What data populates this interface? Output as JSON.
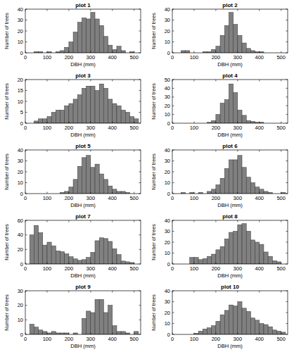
{
  "chart_data": [
    {
      "type": "histogram",
      "title": "plot 1",
      "x_label": "DBH (mm)",
      "y_label": "Number of trees",
      "color": "#808080",
      "bins": [
        0,
        20,
        40,
        60,
        80,
        100,
        120,
        140,
        160,
        180,
        200,
        220,
        240,
        260,
        280,
        300,
        320,
        340,
        360,
        380,
        400,
        420,
        440,
        460,
        480,
        500,
        520
      ],
      "values": [
        0,
        0,
        1,
        1,
        0,
        1,
        0,
        1,
        2,
        5,
        10,
        19,
        28,
        32,
        31,
        37,
        31,
        25,
        15,
        7,
        3,
        6,
        2,
        0,
        1,
        0
      ],
      "xlim": [
        0,
        530
      ],
      "xticks": [
        0,
        100,
        200,
        300,
        400,
        500
      ],
      "ylim": [
        0,
        40
      ],
      "yticks": [
        0,
        10,
        20,
        30,
        40
      ]
    },
    {
      "type": "histogram",
      "title": "plot 2",
      "x_label": "DBH (mm)",
      "y_label": "Number of trees",
      "color": "#808080",
      "bins": [
        0,
        20,
        40,
        60,
        80,
        100,
        120,
        140,
        160,
        180,
        200,
        220,
        240,
        260,
        280,
        300,
        320,
        340,
        360,
        380,
        400,
        420,
        440,
        460,
        480,
        500,
        520
      ],
      "values": [
        0,
        0,
        2,
        2,
        0,
        0,
        0,
        1,
        1,
        3,
        6,
        16,
        25,
        37,
        26,
        16,
        9,
        4,
        2,
        1,
        1,
        0,
        0,
        0,
        0,
        0
      ],
      "xlim": [
        0,
        530
      ],
      "xticks": [
        0,
        100,
        200,
        300,
        400,
        500
      ],
      "ylim": [
        0,
        40
      ],
      "yticks": [
        0,
        10,
        20,
        30,
        40
      ]
    },
    {
      "type": "histogram",
      "title": "plot 3",
      "x_label": "DBH (mm)",
      "y_label": "Number of trees",
      "color": "#808080",
      "bins": [
        0,
        20,
        40,
        60,
        80,
        100,
        120,
        140,
        160,
        180,
        200,
        220,
        240,
        260,
        280,
        300,
        320,
        340,
        360,
        380,
        400,
        420,
        440,
        460,
        480,
        500,
        520
      ],
      "values": [
        0,
        0,
        1,
        2,
        2,
        3,
        5,
        6,
        6,
        8,
        9,
        11,
        13,
        16,
        17,
        17,
        15,
        18,
        16,
        11,
        9,
        8,
        6,
        5,
        3,
        2
      ],
      "xlim": [
        0,
        530
      ],
      "xticks": [
        0,
        100,
        200,
        300,
        400,
        500
      ],
      "ylim": [
        0,
        20
      ],
      "yticks": [
        0,
        5,
        10,
        15,
        20
      ]
    },
    {
      "type": "histogram",
      "title": "plot 4",
      "x_label": "DBH (mm)",
      "y_label": "Number of trees",
      "color": "#808080",
      "bins": [
        0,
        20,
        40,
        60,
        80,
        100,
        120,
        140,
        160,
        180,
        200,
        220,
        240,
        260,
        280,
        300,
        320,
        340,
        360,
        380,
        400,
        420,
        440,
        460,
        480,
        500,
        520
      ],
      "values": [
        0,
        0,
        0,
        0,
        0,
        0,
        0,
        0,
        1,
        3,
        10,
        23,
        27,
        45,
        35,
        15,
        9,
        3,
        2,
        1,
        1,
        0,
        0,
        0,
        0,
        0
      ],
      "xlim": [
        0,
        530
      ],
      "xticks": [
        0,
        100,
        200,
        300,
        400,
        500
      ],
      "ylim": [
        0,
        50
      ],
      "yticks": [
        0,
        10,
        20,
        30,
        40,
        50
      ]
    },
    {
      "type": "histogram",
      "title": "plot 5",
      "x_label": "DBH (mm)",
      "y_label": "Number of trees",
      "color": "#808080",
      "bins": [
        0,
        20,
        40,
        60,
        80,
        100,
        120,
        140,
        160,
        180,
        200,
        220,
        240,
        260,
        280,
        300,
        320,
        340,
        360,
        380,
        400,
        420,
        440,
        460,
        480,
        500,
        520
      ],
      "values": [
        0,
        0,
        0,
        0,
        0,
        0,
        0,
        0,
        1,
        2,
        6,
        13,
        25,
        33,
        35,
        24,
        27,
        18,
        13,
        7,
        4,
        2,
        2,
        1,
        0,
        0
      ],
      "xlim": [
        0,
        530
      ],
      "xticks": [
        0,
        100,
        200,
        300,
        400,
        500
      ],
      "ylim": [
        0,
        40
      ],
      "yticks": [
        0,
        10,
        20,
        30,
        40
      ]
    },
    {
      "type": "histogram",
      "title": "plot 6",
      "x_label": "DBH (mm)",
      "y_label": "Number of trees",
      "color": "#808080",
      "bins": [
        0,
        20,
        40,
        60,
        80,
        100,
        120,
        140,
        160,
        180,
        200,
        220,
        240,
        260,
        280,
        300,
        320,
        340,
        360,
        380,
        400,
        420,
        440,
        460,
        480,
        500,
        520
      ],
      "values": [
        0,
        0,
        1,
        0,
        1,
        0,
        1,
        0,
        2,
        4,
        8,
        14,
        23,
        31,
        31,
        35,
        24,
        15,
        10,
        6,
        4,
        2,
        1,
        0,
        0,
        1
      ],
      "xlim": [
        0,
        530
      ],
      "xticks": [
        0,
        100,
        200,
        300,
        400,
        500
      ],
      "ylim": [
        0,
        40
      ],
      "yticks": [
        0,
        10,
        20,
        30,
        40
      ]
    },
    {
      "type": "histogram",
      "title": "plot 7",
      "x_label": "DBH (mm)",
      "y_label": "Number of trees",
      "color": "#808080",
      "bins": [
        0,
        20,
        40,
        60,
        80,
        100,
        120,
        140,
        160,
        180,
        200,
        220,
        240,
        260,
        280,
        300,
        320,
        340,
        360,
        380,
        400,
        420,
        440,
        460,
        480,
        500,
        520
      ],
      "values": [
        0,
        40,
        53,
        43,
        26,
        30,
        25,
        18,
        17,
        14,
        10,
        7,
        5,
        6,
        9,
        16,
        32,
        36,
        35,
        31,
        21,
        13,
        4,
        3,
        2,
        0
      ],
      "xlim": [
        0,
        530
      ],
      "xticks": [
        0,
        100,
        200,
        300,
        400,
        500
      ],
      "ylim": [
        0,
        60
      ],
      "yticks": [
        0,
        20,
        40,
        60
      ]
    },
    {
      "type": "histogram",
      "title": "plot 8",
      "x_label": "DBH (mm)",
      "y_label": "Number of trees",
      "color": "#808080",
      "bins": [
        0,
        20,
        40,
        60,
        80,
        100,
        120,
        140,
        160,
        180,
        200,
        220,
        240,
        260,
        280,
        300,
        320,
        340,
        360,
        380,
        400,
        420,
        440,
        460,
        480,
        500,
        520
      ],
      "values": [
        0,
        0,
        0,
        0,
        6,
        6,
        4,
        5,
        7,
        9,
        13,
        16,
        23,
        29,
        30,
        36,
        37,
        30,
        22,
        20,
        18,
        11,
        7,
        3,
        2,
        0
      ],
      "xlim": [
        0,
        530
      ],
      "xticks": [
        0,
        100,
        200,
        300,
        400,
        500
      ],
      "ylim": [
        0,
        40
      ],
      "yticks": [
        0,
        10,
        20,
        30,
        40
      ]
    },
    {
      "type": "histogram",
      "title": "plot 9",
      "x_label": "DBH (mm)",
      "y_label": "Number of trees",
      "color": "#808080",
      "bins": [
        0,
        20,
        40,
        60,
        80,
        100,
        120,
        140,
        160,
        180,
        200,
        220,
        240,
        260,
        280,
        300,
        320,
        340,
        360,
        380,
        400,
        420,
        440,
        460,
        480,
        500,
        520
      ],
      "values": [
        0,
        7,
        5,
        3,
        2,
        1,
        2,
        1,
        1,
        1,
        0,
        1,
        0,
        11,
        16,
        15,
        24,
        24,
        15,
        20,
        6,
        2,
        2,
        1,
        0,
        2
      ],
      "xlim": [
        0,
        530
      ],
      "xticks": [
        0,
        100,
        200,
        300,
        400,
        500
      ],
      "ylim": [
        0,
        30
      ],
      "yticks": [
        0,
        10,
        20,
        30
      ]
    },
    {
      "type": "histogram",
      "title": "plot 10",
      "x_label": "DBH (mm)",
      "y_label": "Number of trees",
      "color": "#808080",
      "bins": [
        0,
        20,
        40,
        60,
        80,
        100,
        120,
        140,
        160,
        180,
        200,
        220,
        240,
        260,
        280,
        300,
        320,
        340,
        360,
        380,
        400,
        420,
        440,
        460,
        480,
        500,
        520
      ],
      "values": [
        0,
        0,
        0,
        0,
        0,
        1,
        3,
        5,
        6,
        8,
        12,
        18,
        22,
        27,
        26,
        30,
        24,
        21,
        15,
        13,
        10,
        9,
        7,
        4,
        3,
        2
      ],
      "xlim": [
        0,
        530
      ],
      "xticks": [
        0,
        100,
        200,
        300,
        400,
        500
      ],
      "ylim": [
        0,
        40
      ],
      "yticks": [
        0,
        10,
        20,
        30,
        40
      ]
    }
  ]
}
